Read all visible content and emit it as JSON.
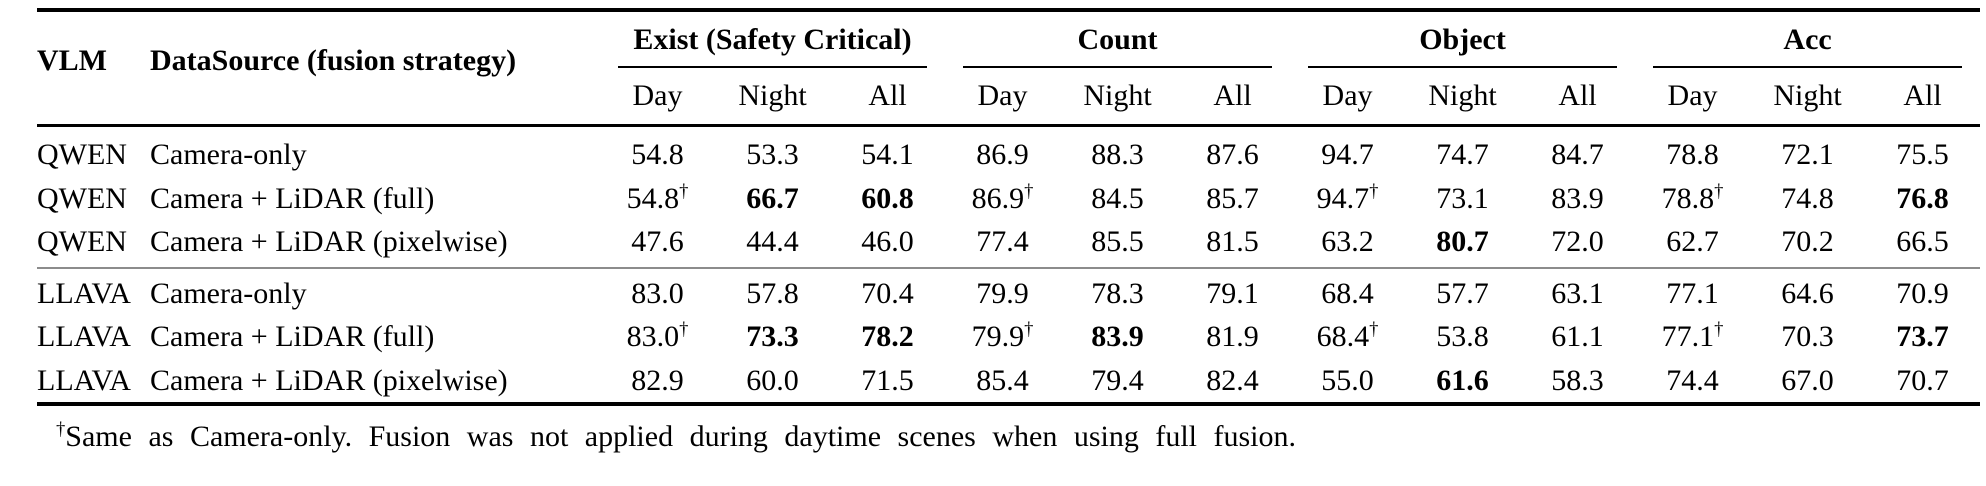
{
  "table": {
    "headers": {
      "vlm": "VLM",
      "datasource": "DataSource (fusion strategy)",
      "groups": [
        "Exist (Safety Critical)",
        "Count",
        "Object",
        "Acc"
      ],
      "subcols": [
        "Day",
        "Night",
        "All"
      ]
    },
    "rows": [
      {
        "vlm": "QWEN",
        "datasource": "Camera-only",
        "cells": [
          {
            "v": "54.8",
            "sup": "",
            "b": false
          },
          {
            "v": "53.3",
            "sup": "",
            "b": false
          },
          {
            "v": "54.1",
            "sup": "",
            "b": false
          },
          {
            "v": "86.9",
            "sup": "",
            "b": false
          },
          {
            "v": "88.3",
            "sup": "",
            "b": false
          },
          {
            "v": "87.6",
            "sup": "",
            "b": false
          },
          {
            "v": "94.7",
            "sup": "",
            "b": false
          },
          {
            "v": "74.7",
            "sup": "",
            "b": false
          },
          {
            "v": "84.7",
            "sup": "",
            "b": false
          },
          {
            "v": "78.8",
            "sup": "",
            "b": false
          },
          {
            "v": "72.1",
            "sup": "",
            "b": false
          },
          {
            "v": "75.5",
            "sup": "",
            "b": false
          }
        ]
      },
      {
        "vlm": "QWEN",
        "datasource": "Camera + LiDAR (full)",
        "cells": [
          {
            "v": "54.8",
            "sup": "†",
            "b": false
          },
          {
            "v": "66.7",
            "sup": "",
            "b": true
          },
          {
            "v": "60.8",
            "sup": "",
            "b": true
          },
          {
            "v": "86.9",
            "sup": "†",
            "b": false
          },
          {
            "v": "84.5",
            "sup": "",
            "b": false
          },
          {
            "v": "85.7",
            "sup": "",
            "b": false
          },
          {
            "v": "94.7",
            "sup": "†",
            "b": false
          },
          {
            "v": "73.1",
            "sup": "",
            "b": false
          },
          {
            "v": "83.9",
            "sup": "",
            "b": false
          },
          {
            "v": "78.8",
            "sup": "†",
            "b": false
          },
          {
            "v": "74.8",
            "sup": "",
            "b": false
          },
          {
            "v": "76.8",
            "sup": "",
            "b": true
          }
        ]
      },
      {
        "vlm": "QWEN",
        "datasource": "Camera + LiDAR (pixelwise)",
        "cells": [
          {
            "v": "47.6",
            "sup": "",
            "b": false
          },
          {
            "v": "44.4",
            "sup": "",
            "b": false
          },
          {
            "v": "46.0",
            "sup": "",
            "b": false
          },
          {
            "v": "77.4",
            "sup": "",
            "b": false
          },
          {
            "v": "85.5",
            "sup": "",
            "b": false
          },
          {
            "v": "81.5",
            "sup": "",
            "b": false
          },
          {
            "v": "63.2",
            "sup": "",
            "b": false
          },
          {
            "v": "80.7",
            "sup": "",
            "b": true
          },
          {
            "v": "72.0",
            "sup": "",
            "b": false
          },
          {
            "v": "62.7",
            "sup": "",
            "b": false
          },
          {
            "v": "70.2",
            "sup": "",
            "b": false
          },
          {
            "v": "66.5",
            "sup": "",
            "b": false
          }
        ]
      },
      {
        "vlm": "LLAVA",
        "datasource": "Camera-only",
        "cells": [
          {
            "v": "83.0",
            "sup": "",
            "b": false
          },
          {
            "v": "57.8",
            "sup": "",
            "b": false
          },
          {
            "v": "70.4",
            "sup": "",
            "b": false
          },
          {
            "v": "79.9",
            "sup": "",
            "b": false
          },
          {
            "v": "78.3",
            "sup": "",
            "b": false
          },
          {
            "v": "79.1",
            "sup": "",
            "b": false
          },
          {
            "v": "68.4",
            "sup": "",
            "b": false
          },
          {
            "v": "57.7",
            "sup": "",
            "b": false
          },
          {
            "v": "63.1",
            "sup": "",
            "b": false
          },
          {
            "v": "77.1",
            "sup": "",
            "b": false
          },
          {
            "v": "64.6",
            "sup": "",
            "b": false
          },
          {
            "v": "70.9",
            "sup": "",
            "b": false
          }
        ]
      },
      {
        "vlm": "LLAVA",
        "datasource": "Camera + LiDAR (full)",
        "cells": [
          {
            "v": "83.0",
            "sup": "†",
            "b": false
          },
          {
            "v": "73.3",
            "sup": "",
            "b": true
          },
          {
            "v": "78.2",
            "sup": "",
            "b": true
          },
          {
            "v": "79.9",
            "sup": "†",
            "b": false
          },
          {
            "v": "83.9",
            "sup": "",
            "b": true
          },
          {
            "v": "81.9",
            "sup": "",
            "b": false
          },
          {
            "v": "68.4",
            "sup": "†",
            "b": false
          },
          {
            "v": "53.8",
            "sup": "",
            "b": false
          },
          {
            "v": "61.1",
            "sup": "",
            "b": false
          },
          {
            "v": "77.1",
            "sup": "†",
            "b": false
          },
          {
            "v": "70.3",
            "sup": "",
            "b": false
          },
          {
            "v": "73.7",
            "sup": "",
            "b": true
          }
        ]
      },
      {
        "vlm": "LLAVA",
        "datasource": "Camera + LiDAR (pixelwise)",
        "cells": [
          {
            "v": "82.9",
            "sup": "",
            "b": false
          },
          {
            "v": "60.0",
            "sup": "",
            "b": false
          },
          {
            "v": "71.5",
            "sup": "",
            "b": false
          },
          {
            "v": "85.4",
            "sup": "",
            "b": false
          },
          {
            "v": "79.4",
            "sup": "",
            "b": false
          },
          {
            "v": "82.4",
            "sup": "",
            "b": false
          },
          {
            "v": "55.0",
            "sup": "",
            "b": false
          },
          {
            "v": "61.6",
            "sup": "",
            "b": true
          },
          {
            "v": "58.3",
            "sup": "",
            "b": false
          },
          {
            "v": "74.4",
            "sup": "",
            "b": false
          },
          {
            "v": "67.0",
            "sup": "",
            "b": false
          },
          {
            "v": "70.7",
            "sup": "",
            "b": false
          }
        ]
      }
    ],
    "footnote": {
      "symbol": "†",
      "text": "Same as Camera-only. Fusion was not applied during daytime scenes when using full fusion."
    }
  }
}
